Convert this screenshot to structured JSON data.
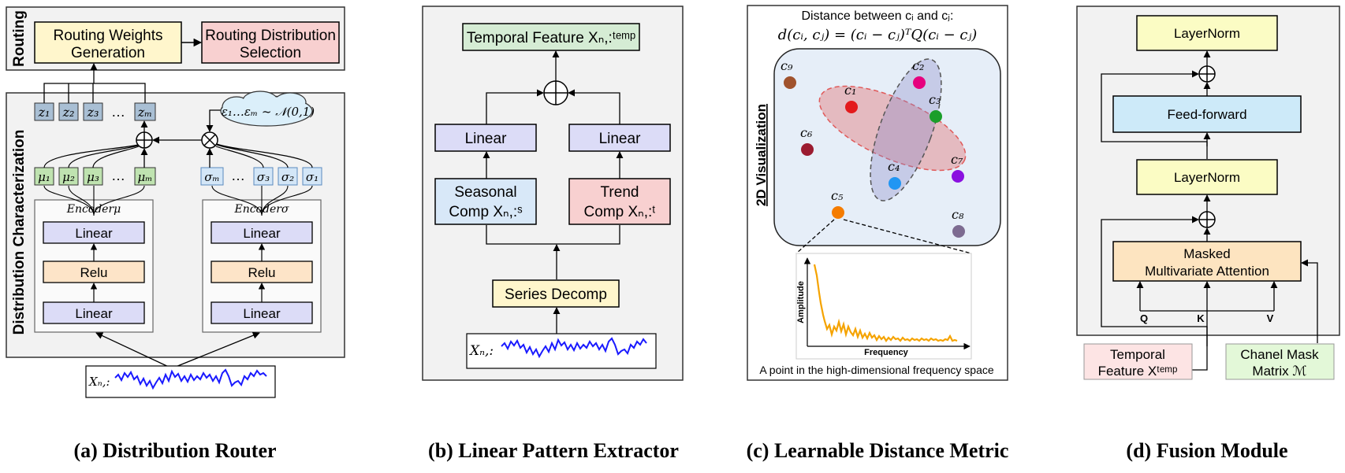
{
  "captions": {
    "a": "(a) Distribution Router",
    "b": "(b) Linear Pattern Extractor",
    "c": "(c) Learnable Distance Metric",
    "d": "(d) Fusion Module"
  },
  "panel_a": {
    "routing_side_label": "Routing",
    "dist_side_label": "Distribution Characterization",
    "routing_weights": [
      "Routing Weights",
      "Generation"
    ],
    "routing_selection": [
      "Routing Distribution",
      "Selection"
    ],
    "z_labels": [
      "z₁",
      "z₂",
      "z₃",
      "…",
      "zₘ"
    ],
    "mu_labels": [
      "μ₁",
      "μ₂",
      "μ₃",
      "…",
      "μₘ"
    ],
    "sigma_labels": [
      "σₘ",
      "…",
      "σ₃",
      "σ₂",
      "σ₁"
    ],
    "noise": "ε₁…εₘ ~ 𝒩(0,1)",
    "enc_mu": "Encoderμ",
    "enc_sigma": "Encoderσ",
    "linear": "Linear",
    "relu": "Relu",
    "input": "Xₙ,:"
  },
  "panel_b": {
    "temporal": "Temporal Feature Xₙ,:ᵗᵉᵐᵖ",
    "linear": "Linear",
    "seasonal": [
      "Seasonal",
      "Comp Xₙ,:ˢ"
    ],
    "trend": [
      "Trend",
      "Comp Xₙ,:ᵗ"
    ],
    "decomp": "Series Decomp",
    "input": "Xₙ,:"
  },
  "panel_c": {
    "title1": "Distance between cᵢ and cⱼ:",
    "formula": "d(cᵢ, cⱼ) = (cᵢ − cⱼ)ᵀQ(cᵢ − cⱼ)",
    "side_label": "2D Visualization",
    "points": [
      {
        "label": "c₉",
        "color": "#a0522d"
      },
      {
        "label": "c₂",
        "color": "#e6007e"
      },
      {
        "label": "c₁",
        "color": "#e31a1c"
      },
      {
        "label": "c₃",
        "color": "#1a9e2a"
      },
      {
        "label": "c₆",
        "color": "#9b1b30"
      },
      {
        "label": "c₇",
        "color": "#8a10e0"
      },
      {
        "label": "c₄",
        "color": "#2196f3"
      },
      {
        "label": "c₅",
        "color": "#f57c00"
      },
      {
        "label": "c₈",
        "color": "#7d6b91"
      }
    ],
    "amplitude": "Amplitude",
    "frequency": "Frequency",
    "caption": "A point in the high-dimensional frequency space"
  },
  "panel_d": {
    "layernorm": "LayerNorm",
    "ffn": "Feed-forward",
    "attn": [
      "Masked",
      "Multivariate Attention"
    ],
    "q": "Q",
    "k": "K",
    "v": "V",
    "temporal": [
      "Temporal",
      "Feature Xᵗᵉᵐᵖ"
    ],
    "mask": [
      "Chanel Mask",
      "Matrix ℳ"
    ]
  }
}
